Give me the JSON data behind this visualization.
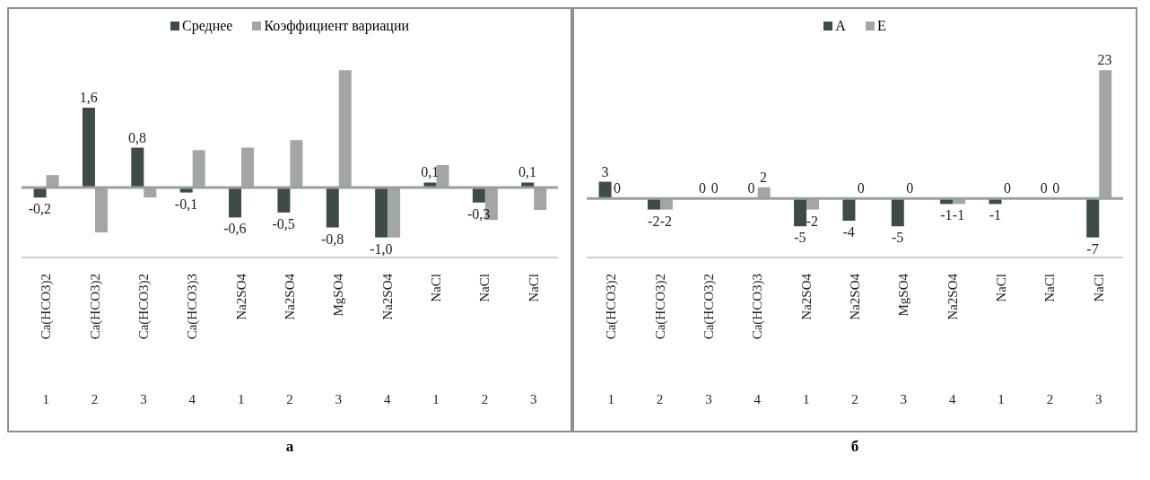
{
  "chart_data": [
    {
      "type": "bar",
      "title": "а",
      "legend": "top",
      "categories": [
        "Ca(HCO3)2",
        "Ca(HCO3)2",
        "Ca(HCO3)2",
        "Ca(HCO3)3",
        "Na2SO4",
        "Na2SO4",
        "MgSO4",
        "Na2SO4",
        "NaCl",
        "NaCl",
        "NaCl"
      ],
      "annotations": [
        "1",
        "2",
        "3",
        "4",
        "1",
        "2",
        "3",
        "4",
        "1",
        "2",
        "3"
      ],
      "series": [
        {
          "name": "Среднее",
          "color": "#3f4b4b",
          "values": [
            -0.2,
            1.6,
            0.8,
            -0.1,
            -0.6,
            -0.5,
            -0.8,
            -1.0,
            0.1,
            -0.3,
            0.1
          ],
          "value_labels": [
            "-0,2",
            "1,6",
            "0,8",
            "-0,1",
            "-0,6",
            "-0,5",
            "-0,8",
            "-1,0",
            "0,1",
            "-0,3",
            "0,1"
          ]
        },
        {
          "name": "Коэффициент вариации",
          "color": "#a2a6a6",
          "values": [
            0.25,
            -0.9,
            -0.2,
            0.75,
            0.8,
            0.95,
            2.35,
            -1.0,
            0.45,
            -0.65,
            -0.45
          ]
        }
      ]
    },
    {
      "type": "bar",
      "title": "б",
      "legend": "top",
      "data_labels": true,
      "categories": [
        "Ca(HCO3)2",
        "Ca(HCO3)2",
        "Ca(HCO3)2",
        "Ca(HCO3)3",
        "Na2SO4",
        "Na2SO4",
        "MgSO4",
        "Na2SO4",
        "NaCl",
        "NaCl",
        "NaCl"
      ],
      "annotations": [
        "1",
        "2",
        "3",
        "4",
        "1",
        "2",
        "3",
        "4",
        "1",
        "2",
        "3"
      ],
      "series": [
        {
          "name": "А",
          "color": "#3f4b4b",
          "values": [
            3,
            -2,
            0,
            0,
            -5,
            -4,
            -5,
            -1,
            -1,
            0,
            -7
          ]
        },
        {
          "name": "Е",
          "color": "#a2a6a6",
          "values": [
            0,
            -2,
            0,
            2,
            -2,
            0,
            0,
            -1,
            0,
            0,
            23
          ]
        }
      ]
    }
  ]
}
